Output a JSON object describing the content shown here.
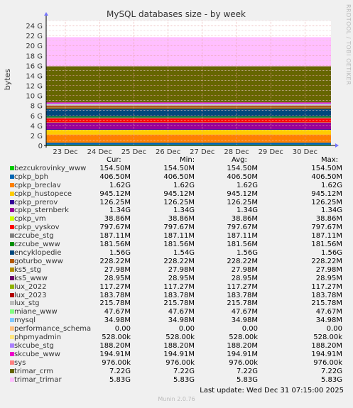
{
  "side_label": "RRDTOOL / TOBI OETIKER",
  "footer_version": "Munin 2.0.76",
  "last_update": "Last update: Wed Dec 31 07:15:00 2025",
  "headers": {
    "cur": "Cur:",
    "min": "Min:",
    "avg": "Avg:",
    "max": "Max:"
  },
  "chart_data": {
    "type": "area",
    "stacked": true,
    "title": "MySQL databases size - by week",
    "ylabel": "bytes",
    "xlabel": "",
    "ylim": [
      0,
      25
    ],
    "y_unit": "G",
    "yticks": [
      "0",
      "2 G",
      "4 G",
      "6 G",
      "8 G",
      "10 G",
      "12 G",
      "14 G",
      "16 G",
      "18 G",
      "20 G",
      "22 G",
      "24 G"
    ],
    "xticks": [
      "23 Dec",
      "24 Dec",
      "25 Dec",
      "26 Dec",
      "27 Dec",
      "28 Dec",
      "29 Dec",
      "30 Dec"
    ],
    "grid": true,
    "series": [
      {
        "name": "bezcukrovinky_www",
        "color": "#00cc00",
        "gb": 0.1546,
        "cur": "154.50M",
        "min": "154.50M",
        "avg": "154.50M",
        "max": "154.50M"
      },
      {
        "name": "cpkp_bph",
        "color": "#0066b3",
        "gb": 0.4065,
        "cur": "406.50M",
        "min": "406.50M",
        "avg": "406.50M",
        "max": "406.50M"
      },
      {
        "name": "cpkp_breclav",
        "color": "#ff8000",
        "gb": 1.62,
        "cur": "1.62G",
        "min": "1.62G",
        "avg": "1.62G",
        "max": "1.62G"
      },
      {
        "name": "cpkp_hustopece",
        "color": "#ffcc00",
        "gb": 0.9451,
        "cur": "945.12M",
        "min": "945.12M",
        "avg": "945.12M",
        "max": "945.12M"
      },
      {
        "name": "cpkp_prerov",
        "color": "#330099",
        "gb": 0.1263,
        "cur": "126.25M",
        "min": "126.25M",
        "avg": "126.25M",
        "max": "126.25M"
      },
      {
        "name": "cpkp_sternberk",
        "color": "#990099",
        "gb": 1.34,
        "cur": "1.34G",
        "min": "1.34G",
        "avg": "1.34G",
        "max": "1.34G"
      },
      {
        "name": "cpkp_vm",
        "color": "#ccff00",
        "gb": 0.0389,
        "cur": "38.86M",
        "min": "38.86M",
        "avg": "38.86M",
        "max": "38.86M"
      },
      {
        "name": "cpkp_vyskov",
        "color": "#ff0000",
        "gb": 0.7977,
        "cur": "797.67M",
        "min": "797.67M",
        "avg": "797.67M",
        "max": "797.67M"
      },
      {
        "name": "czcube_stg",
        "color": "#808080",
        "gb": 0.1871,
        "cur": "187.11M",
        "min": "187.11M",
        "avg": "187.11M",
        "max": "187.11M"
      },
      {
        "name": "czcube_www",
        "color": "#008f00",
        "gb": 0.1816,
        "cur": "181.56M",
        "min": "181.56M",
        "avg": "181.56M",
        "max": "181.56M"
      },
      {
        "name": "encyklopedie",
        "color": "#00487d",
        "gb": 1.56,
        "cur": "1.56G",
        "min": "1.54G",
        "avg": "1.56G",
        "max": "1.56G"
      },
      {
        "name": "goturbo_www",
        "color": "#b35a00",
        "gb": 0.2282,
        "cur": "228.22M",
        "min": "228.22M",
        "avg": "228.22M",
        "max": "228.22M"
      },
      {
        "name": "ks5_stg",
        "color": "#b38f00",
        "gb": 0.028,
        "cur": "27.98M",
        "min": "27.98M",
        "avg": "27.98M",
        "max": "27.98M"
      },
      {
        "name": "ks5_www",
        "color": "#6b006b",
        "gb": 0.029,
        "cur": "28.95M",
        "min": "28.95M",
        "avg": "28.95M",
        "max": "28.95M"
      },
      {
        "name": "lux_2022",
        "color": "#8fb300",
        "gb": 0.1173,
        "cur": "117.27M",
        "min": "117.27M",
        "avg": "117.27M",
        "max": "117.27M"
      },
      {
        "name": "lux_2023",
        "color": "#b30000",
        "gb": 0.1838,
        "cur": "183.78M",
        "min": "183.78M",
        "avg": "183.78M",
        "max": "183.78M"
      },
      {
        "name": "lux_stg",
        "color": "#bebebe",
        "gb": 0.2158,
        "cur": "215.78M",
        "min": "215.78M",
        "avg": "215.78M",
        "max": "215.78M"
      },
      {
        "name": "miane_www",
        "color": "#80ff80",
        "gb": 0.0477,
        "cur": "47.67M",
        "min": "47.67M",
        "avg": "47.67M",
        "max": "47.67M"
      },
      {
        "name": "mysql",
        "color": "#80c9ff",
        "gb": 0.035,
        "cur": "34.98M",
        "min": "34.98M",
        "avg": "34.98M",
        "max": "34.98M"
      },
      {
        "name": "performance_schema",
        "color": "#ffc080",
        "gb": 0,
        "cur": "0.00",
        "min": "0.00",
        "avg": "0.00",
        "max": "0.00"
      },
      {
        "name": "phpmyadmin",
        "color": "#ffe680",
        "gb": 0.0005,
        "cur": "528.00k",
        "min": "528.00k",
        "avg": "528.00k",
        "max": "528.00k"
      },
      {
        "name": "skcube_stg",
        "color": "#aa80ff",
        "gb": 0.1882,
        "cur": "188.20M",
        "min": "188.20M",
        "avg": "188.20M",
        "max": "188.20M"
      },
      {
        "name": "skcube_www",
        "color": "#ee00cc",
        "gb": 0.1949,
        "cur": "194.91M",
        "min": "194.91M",
        "avg": "194.91M",
        "max": "194.91M"
      },
      {
        "name": "sys",
        "color": "#ff8080",
        "gb": 0.001,
        "cur": "976.00k",
        "min": "976.00k",
        "avg": "976.00k",
        "max": "976.00k"
      },
      {
        "name": "trimar_crm",
        "color": "#666600",
        "gb": 7.22,
        "cur": "7.22G",
        "min": "7.22G",
        "avg": "7.22G",
        "max": "7.22G"
      },
      {
        "name": "trimar_trimar",
        "color": "#ffbfff",
        "gb": 5.83,
        "cur": "5.83G",
        "min": "5.83G",
        "avg": "5.83G",
        "max": "5.83G"
      }
    ]
  }
}
